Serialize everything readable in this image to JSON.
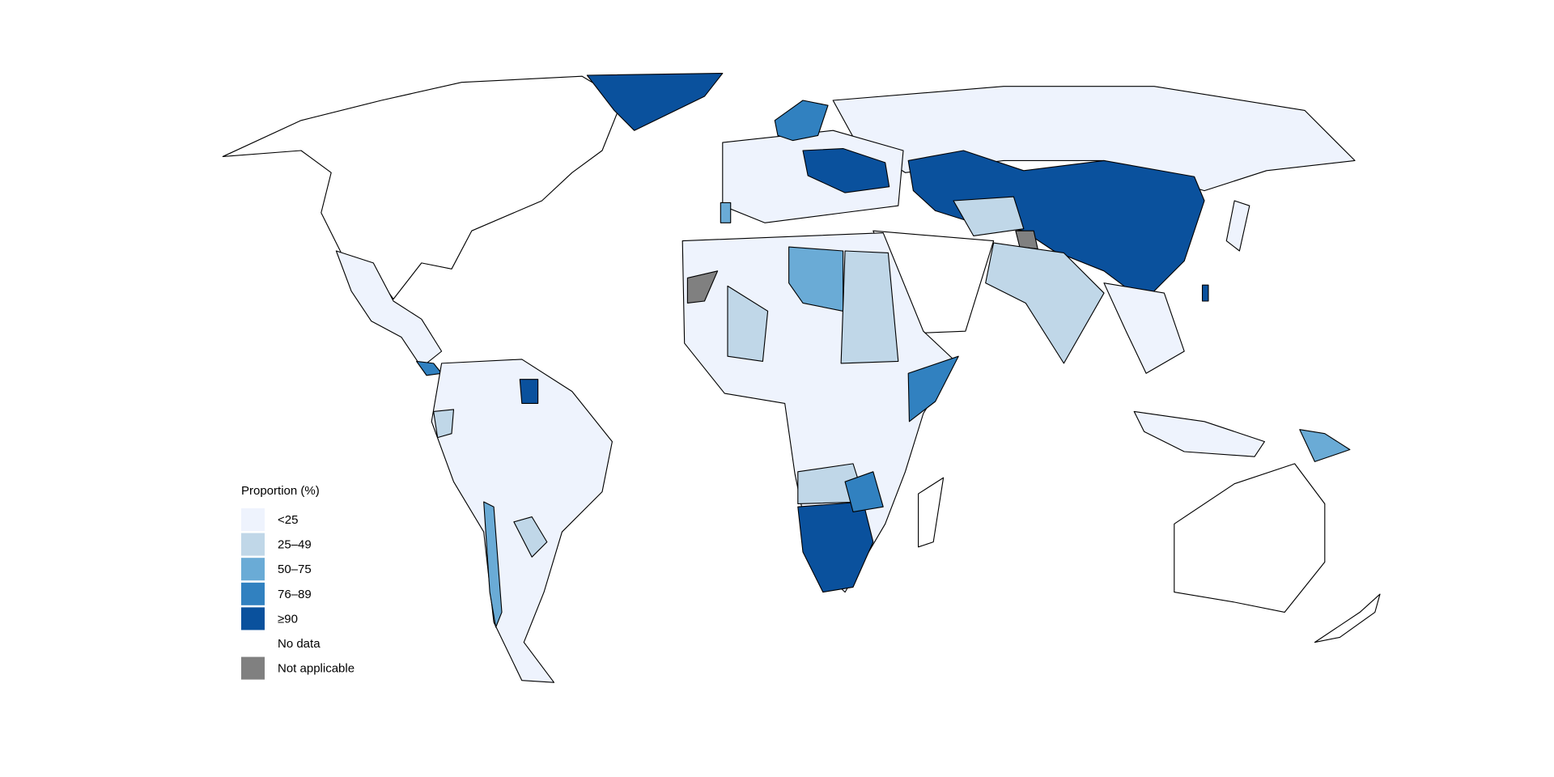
{
  "legend": {
    "title": "Proportion (%)",
    "items": [
      {
        "label": "<25",
        "color": "#eef3fd"
      },
      {
        "label": "25–49",
        "color": "#c0d7e8"
      },
      {
        "label": "50–75",
        "color": "#6aabd6"
      },
      {
        "label": "76–89",
        "color": "#3181c0"
      },
      {
        "label": "≥90",
        "color": "#0a519d"
      },
      {
        "label": "No data",
        "color": "#ffffff"
      },
      {
        "label": "Not applicable",
        "color": "#808080"
      }
    ]
  }
}
